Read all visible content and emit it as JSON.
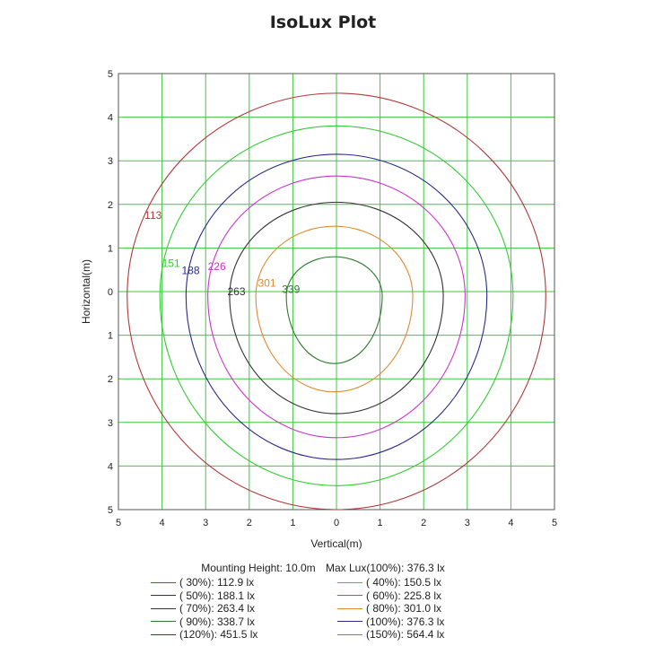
{
  "title": "IsoLux Plot",
  "meta": {
    "mounting_height": "Mounting Height: 10.0m",
    "max_lux": "Max Lux(100%): 376.3 lx"
  },
  "chart_data": {
    "type": "contour",
    "title": "IsoLux Plot",
    "xlabel": "Vertical(m)",
    "ylabel": "Horizontal(m)",
    "xlim": [
      -5,
      5
    ],
    "ylim": [
      -5,
      5
    ],
    "grid": true,
    "x_ticks": [
      {
        "v": -5,
        "t": "5"
      },
      {
        "v": -4,
        "t": "4"
      },
      {
        "v": -3,
        "t": "3"
      },
      {
        "v": -2,
        "t": "2"
      },
      {
        "v": -1,
        "t": "1"
      },
      {
        "v": 0,
        "t": "0"
      },
      {
        "v": 1,
        "t": "1"
      },
      {
        "v": 2,
        "t": "2"
      },
      {
        "v": 3,
        "t": "3"
      },
      {
        "v": 4,
        "t": "4"
      },
      {
        "v": 5,
        "t": "5"
      }
    ],
    "y_ticks": [
      {
        "v": 5,
        "t": "5"
      },
      {
        "v": 4,
        "t": "4"
      },
      {
        "v": 3,
        "t": "3"
      },
      {
        "v": 2,
        "t": "2"
      },
      {
        "v": 1,
        "t": "1"
      },
      {
        "v": 0,
        "t": "0"
      },
      {
        "v": -1,
        "t": "1"
      },
      {
        "v": -2,
        "t": "2"
      },
      {
        "v": -3,
        "t": "3"
      },
      {
        "v": -4,
        "t": "4"
      },
      {
        "v": -5,
        "t": "5"
      }
    ],
    "contours": [
      {
        "label": "113",
        "color": "#b03a3a",
        "cx": 0,
        "cy": -0.1,
        "rx": 4.8,
        "ry_top": 4.65,
        "ry_bottom": 4.9,
        "label_at": [
          -4.4,
          1.75
        ]
      },
      {
        "label": "151",
        "color": "#33cc33",
        "cx": 0,
        "cy": -0.1,
        "rx": 4.05,
        "ry_top": 3.9,
        "ry_bottom": 4.35,
        "label_at": [
          -4.0,
          0.65
        ]
      },
      {
        "label": "188",
        "color": "#2a2a8a",
        "cx": 0,
        "cy": -0.1,
        "rx": 3.45,
        "ry_top": 3.25,
        "ry_bottom": 3.75,
        "label_at": [
          -3.55,
          0.48
        ]
      },
      {
        "label": "226",
        "color": "#cc33cc",
        "cx": 0,
        "cy": -0.1,
        "rx": 2.95,
        "ry_top": 2.75,
        "ry_bottom": 3.25,
        "label_at": [
          -2.95,
          0.58
        ]
      },
      {
        "label": "263",
        "color": "#333333",
        "cx": 0,
        "cy": -0.1,
        "rx": 2.45,
        "ry_top": 2.15,
        "ry_bottom": 2.7,
        "label_at": [
          -2.5,
          0.0
        ]
      },
      {
        "label": "301",
        "color": "#e08a30",
        "cx": -0.05,
        "cy": -0.1,
        "rx": 1.8,
        "ry_top": 1.6,
        "ry_bottom": 2.2,
        "label_at": [
          -1.8,
          0.2
        ]
      },
      {
        "label": "339",
        "color": "#2d7a2d",
        "cx": -0.05,
        "cy": -0.1,
        "rx": 1.1,
        "ry_top": 0.9,
        "ry_bottom": 1.55,
        "label_at": [
          -1.25,
          0.05
        ]
      }
    ],
    "legend": [
      {
        "text": "( 30%): 112.9 lx",
        "color": "#b03a3a"
      },
      {
        "text": "( 40%): 150.5 lx",
        "color": "#33cc33"
      },
      {
        "text": "( 50%): 188.1 lx",
        "color": "#2a2a8a"
      },
      {
        "text": "( 60%): 225.8 lx",
        "color": "#cc33cc"
      },
      {
        "text": "( 70%): 263.4 lx",
        "color": "#333333"
      },
      {
        "text": "( 80%): 301.0 lx",
        "color": "#e08a30"
      },
      {
        "text": "( 90%): 338.7 lx",
        "color": "#2d7a2d"
      },
      {
        "text": "(100%): 376.3 lx",
        "color": "#2a2a8a"
      },
      {
        "text": "(120%): 451.5 lx",
        "color": "#6b2a2a"
      },
      {
        "text": "(150%): 564.4 lx",
        "color": "#8a8a20"
      }
    ]
  }
}
